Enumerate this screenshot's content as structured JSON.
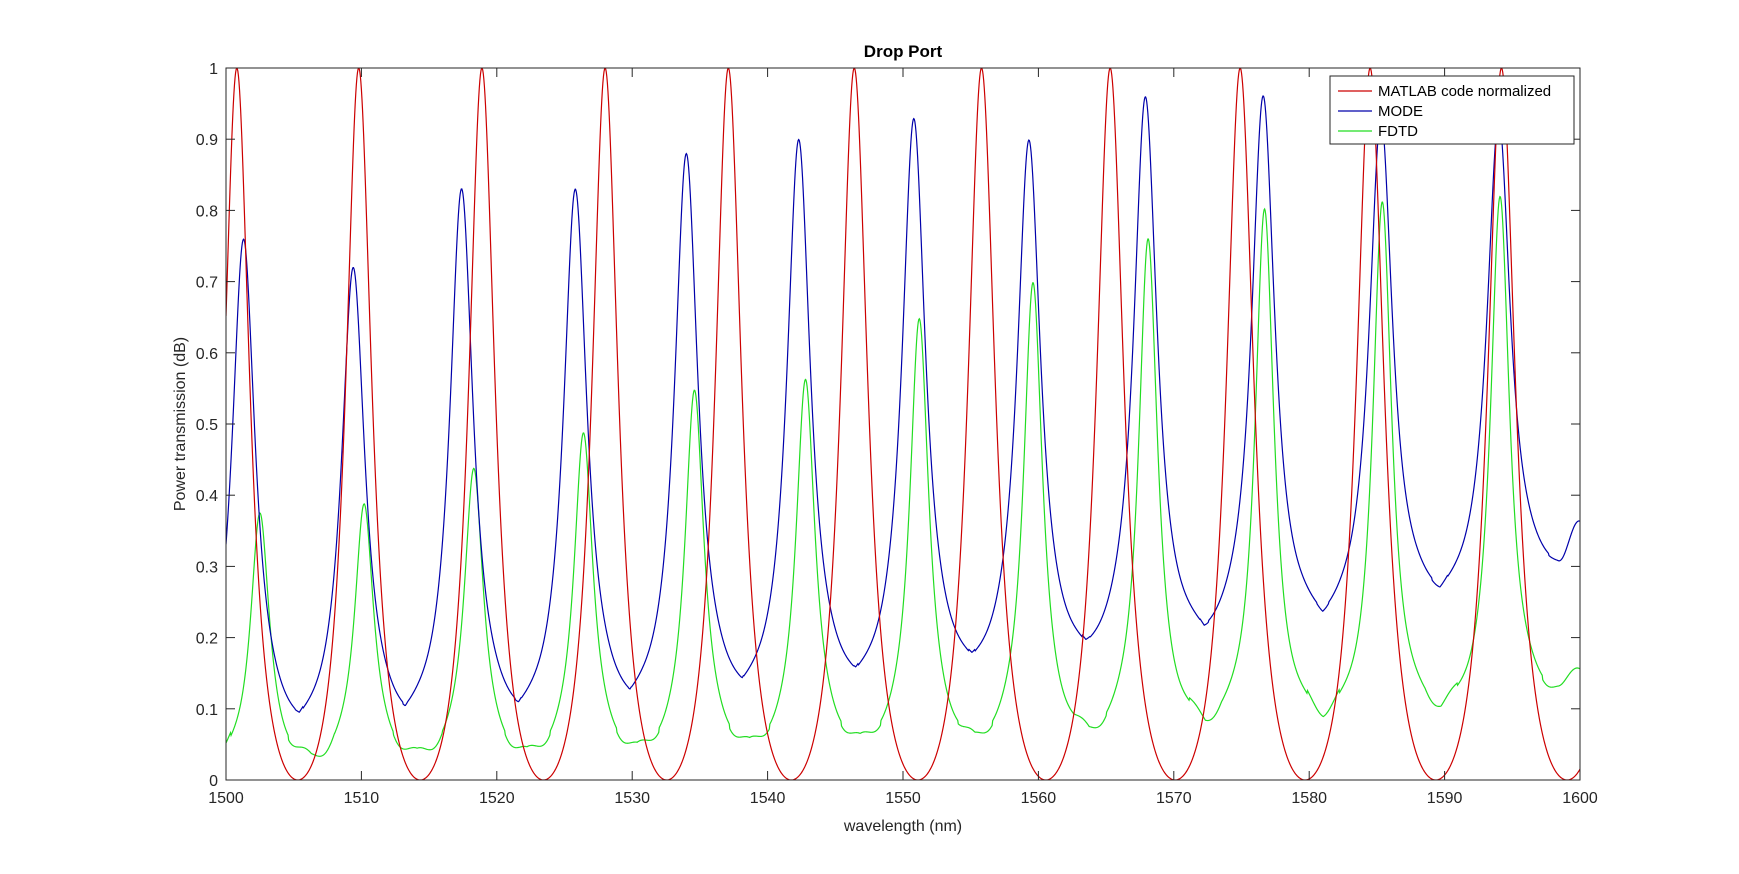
{
  "chart_data": {
    "type": "line",
    "title": "Drop Port",
    "xlabel": "wavelength (nm)",
    "ylabel": "Power transmission (dB)",
    "xlim": [
      1500,
      1600
    ],
    "ylim": [
      0,
      1
    ],
    "xticks": [
      1500,
      1510,
      1520,
      1530,
      1540,
      1550,
      1560,
      1570,
      1580,
      1590,
      1600
    ],
    "yticks": [
      0,
      0.1,
      0.2,
      0.3,
      0.4,
      0.5,
      0.6,
      0.7,
      0.8,
      0.9,
      1
    ],
    "xtick_labels": [
      "1500",
      "1510",
      "1520",
      "1530",
      "1540",
      "1550",
      "1560",
      "1570",
      "1580",
      "1590",
      "1600"
    ],
    "ytick_labels": [
      "0",
      "0.1",
      "0.2",
      "0.3",
      "0.4",
      "0.5",
      "0.6",
      "0.7",
      "0.8",
      "0.9",
      "1"
    ],
    "grid": false,
    "legend_position": "top-right",
    "series": [
      {
        "name": "MATLAB code normalized",
        "color": "#cc0000",
        "peaks": [
          {
            "x": 1500.8,
            "y": 1.0
          },
          {
            "x": 1509.8,
            "y": 1.0
          },
          {
            "x": 1518.9,
            "y": 1.0
          },
          {
            "x": 1528.0,
            "y": 1.0
          },
          {
            "x": 1537.1,
            "y": 1.0
          },
          {
            "x": 1546.4,
            "y": 1.0
          },
          {
            "x": 1555.8,
            "y": 1.0
          },
          {
            "x": 1565.3,
            "y": 1.0
          },
          {
            "x": 1574.9,
            "y": 1.0
          },
          {
            "x": 1584.5,
            "y": 1.0
          },
          {
            "x": 1594.2,
            "y": 1.0
          }
        ],
        "minimum": 0.0
      },
      {
        "name": "MODE",
        "color": "#0000aa",
        "peaks": [
          {
            "x": 1501.3,
            "y": 0.76
          },
          {
            "x": 1509.4,
            "y": 0.72
          },
          {
            "x": 1517.4,
            "y": 0.83
          },
          {
            "x": 1525.8,
            "y": 0.83
          },
          {
            "x": 1534.0,
            "y": 0.88
          },
          {
            "x": 1542.3,
            "y": 0.9
          },
          {
            "x": 1550.8,
            "y": 0.93
          },
          {
            "x": 1559.3,
            "y": 0.9
          },
          {
            "x": 1567.9,
            "y": 0.96
          },
          {
            "x": 1576.6,
            "y": 0.96
          },
          {
            "x": 1585.3,
            "y": 0.93
          },
          {
            "x": 1594.0,
            "y": 0.93
          }
        ],
        "valleys": [
          {
            "x": 1505.0,
            "y": 0.05
          },
          {
            "x": 1513.3,
            "y": 0.06
          },
          {
            "x": 1521.5,
            "y": 0.065
          },
          {
            "x": 1529.8,
            "y": 0.08
          },
          {
            "x": 1538.2,
            "y": 0.095
          },
          {
            "x": 1546.6,
            "y": 0.11
          },
          {
            "x": 1555.0,
            "y": 0.13
          },
          {
            "x": 1563.6,
            "y": 0.15
          },
          {
            "x": 1572.3,
            "y": 0.175
          },
          {
            "x": 1581.0,
            "y": 0.2
          },
          {
            "x": 1589.7,
            "y": 0.235
          },
          {
            "x": 1598.4,
            "y": 0.27
          }
        ],
        "end_value": 0.35
      },
      {
        "name": "FDTD",
        "color": "#22dd22",
        "peaks": [
          {
            "x": 1502.5,
            "y": 0.375
          },
          {
            "x": 1510.2,
            "y": 0.39
          },
          {
            "x": 1518.3,
            "y": 0.44
          },
          {
            "x": 1526.4,
            "y": 0.49
          },
          {
            "x": 1534.6,
            "y": 0.55
          },
          {
            "x": 1542.8,
            "y": 0.565
          },
          {
            "x": 1551.2,
            "y": 0.65
          },
          {
            "x": 1559.6,
            "y": 0.7
          },
          {
            "x": 1568.1,
            "y": 0.76
          },
          {
            "x": 1576.7,
            "y": 0.8
          },
          {
            "x": 1585.4,
            "y": 0.81
          },
          {
            "x": 1594.1,
            "y": 0.82
          }
        ],
        "valleys": [
          {
            "x": 1506.3,
            "y": 0.015
          },
          {
            "x": 1514.3,
            "y": 0.02
          },
          {
            "x": 1522.4,
            "y": 0.02
          },
          {
            "x": 1530.5,
            "y": 0.025
          },
          {
            "x": 1538.7,
            "y": 0.03
          },
          {
            "x": 1547.0,
            "y": 0.035
          },
          {
            "x": 1555.4,
            "y": 0.035
          },
          {
            "x": 1563.8,
            "y": 0.045
          },
          {
            "x": 1572.4,
            "y": 0.06
          },
          {
            "x": 1581.0,
            "y": 0.07
          },
          {
            "x": 1589.7,
            "y": 0.08
          },
          {
            "x": 1598.4,
            "y": 0.1
          }
        ],
        "start_value": 0.01,
        "end_value": 0.15
      }
    ]
  }
}
